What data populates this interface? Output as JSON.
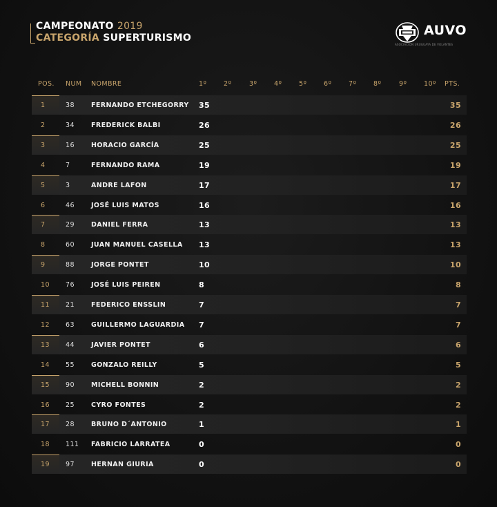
{
  "header": {
    "title_prefix": "CAMPEONATO",
    "title_year": "2019",
    "category_label": "CATEGORÍA",
    "category_name": "SUPERTURISMO"
  },
  "logo": {
    "text": "AUVO",
    "subtitle": "ASOCIACIÓN URUGUAYA DE VOLANTES"
  },
  "columns": {
    "pos": "POS.",
    "num": "NUM",
    "name": "NOMBRE",
    "r1": "1º",
    "r2": "2º",
    "r3": "3º",
    "r4": "4º",
    "r5": "5º",
    "r6": "6º",
    "r7": "7º",
    "r8": "8º",
    "r9": "9º",
    "r10": "10º",
    "pts": "PTS."
  },
  "rows": [
    {
      "pos": "1",
      "num": "38",
      "name": "FERNANDO ETCHEGORRY",
      "r1": "35",
      "pts": "35"
    },
    {
      "pos": "2",
      "num": "34",
      "name": "FREDERICK BALBI",
      "r1": "26",
      "pts": "26"
    },
    {
      "pos": "3",
      "num": "16",
      "name": "HORACIO GARCÍA",
      "r1": "25",
      "pts": "25"
    },
    {
      "pos": "4",
      "num": "7",
      "name": "FERNANDO RAMA",
      "r1": "19",
      "pts": "19"
    },
    {
      "pos": "5",
      "num": "3",
      "name": "ANDRE LAFON",
      "r1": "17",
      "pts": "17"
    },
    {
      "pos": "6",
      "num": "46",
      "name": "JOSÉ LUIS MATOS",
      "r1": "16",
      "pts": "16"
    },
    {
      "pos": "7",
      "num": "29",
      "name": "DANIEL FERRA",
      "r1": "13",
      "pts": "13"
    },
    {
      "pos": "8",
      "num": "60",
      "name": "JUAN MANUEL CASELLA",
      "r1": "13",
      "pts": "13"
    },
    {
      "pos": "9",
      "num": "88",
      "name": "JORGE PONTET",
      "r1": "10",
      "pts": "10"
    },
    {
      "pos": "10",
      "num": "76",
      "name": "JOSÉ LUIS PEIREN",
      "r1": "8",
      "pts": "8"
    },
    {
      "pos": "11",
      "num": "21",
      "name": "FEDERICO ENSSLIN",
      "r1": "7",
      "pts": "7"
    },
    {
      "pos": "12",
      "num": "63",
      "name": "GUILLERMO LAGUARDIA",
      "r1": "7",
      "pts": "7"
    },
    {
      "pos": "13",
      "num": "44",
      "name": "JAVIER PONTET",
      "r1": "6",
      "pts": "6"
    },
    {
      "pos": "14",
      "num": "55",
      "name": "GONZALO REILLY",
      "r1": "5",
      "pts": "5"
    },
    {
      "pos": "15",
      "num": "90",
      "name": "MICHELL BONNIN",
      "r1": "2",
      "pts": "2"
    },
    {
      "pos": "16",
      "num": "25",
      "name": "CYRO FONTES",
      "r1": "2",
      "pts": "2"
    },
    {
      "pos": "17",
      "num": "28",
      "name": "BRUNO D´ANTONIO",
      "r1": "1",
      "pts": "1"
    },
    {
      "pos": "18",
      "num": "111",
      "name": "FABRICIO LARRATEA",
      "r1": "0",
      "pts": "0"
    },
    {
      "pos": "19",
      "num": "97",
      "name": "HERNAN GIURIA",
      "r1": "0",
      "pts": "0"
    }
  ],
  "colors": {
    "accent": "#c9a56c",
    "background": "#141414",
    "row_shade": "#242424"
  }
}
